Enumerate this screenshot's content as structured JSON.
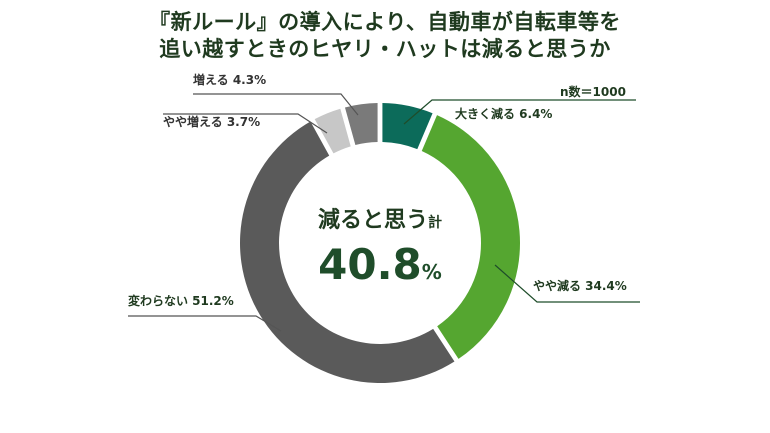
{
  "chart_data": {
    "type": "pie",
    "title_lines": [
      "『新ルール』の導入により、自動車が自転車等を",
      "追い越すときのヒヤリ・ハットは減ると思うか"
    ],
    "sample_note": "n数＝1000",
    "unit": "%",
    "slices": [
      {
        "label": "大きく減る",
        "value": 6.4,
        "value_text": "6.4%",
        "color": "#0c6b5a"
      },
      {
        "label": "やや減る",
        "value": 34.4,
        "value_text": "34.4%",
        "color": "#55a630"
      },
      {
        "label": "変わらない",
        "value": 51.2,
        "value_text": "51.2%",
        "color": "#5a5a5a"
      },
      {
        "label": "やや増える",
        "value": 3.7,
        "value_text": "3.7%",
        "color": "#c7c7c7"
      },
      {
        "label": "増える",
        "value": 4.3,
        "value_text": "4.3%",
        "color": "#7a7a7a"
      }
    ],
    "center": {
      "label": "減ると思う",
      "suffix": "計",
      "value": "40.8",
      "unit": "%"
    }
  }
}
